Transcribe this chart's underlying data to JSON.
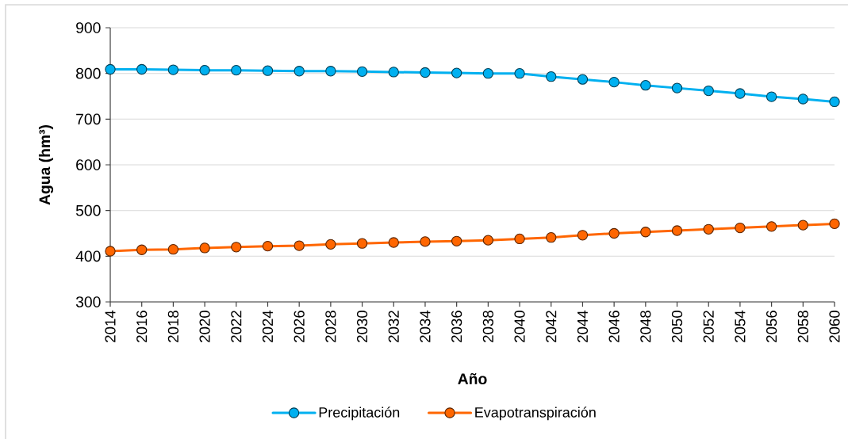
{
  "chart_data": {
    "type": "line",
    "xlabel": "Año",
    "ylabel": "Agua (hm³)",
    "categories": [
      "2014",
      "2016",
      "2018",
      "2020",
      "2022",
      "2024",
      "2026",
      "2028",
      "2030",
      "2032",
      "2034",
      "2036",
      "2038",
      "2040",
      "2042",
      "2044",
      "2046",
      "2048",
      "2050",
      "2052",
      "2054",
      "2056",
      "2058",
      "2060"
    ],
    "series": [
      {
        "name": "Precipitación",
        "color": "#00b0f0",
        "values": [
          809,
          809,
          808,
          807,
          807,
          806,
          805,
          805,
          804,
          803,
          802,
          801,
          800,
          800,
          793,
          787,
          781,
          774,
          768,
          762,
          756,
          749,
          744,
          738
        ]
      },
      {
        "name": "Evapotranspiración",
        "color": "#ff6600",
        "values": [
          411,
          414,
          415,
          418,
          420,
          422,
          423,
          426,
          428,
          430,
          432,
          433,
          435,
          438,
          441,
          446,
          450,
          453,
          456,
          459,
          462,
          465,
          468,
          471
        ]
      }
    ],
    "ylim": [
      300,
      900
    ],
    "yticks": [
      300,
      400,
      500,
      600,
      700,
      800,
      900
    ],
    "grid": "y",
    "legend": "bottom",
    "marker": "circle",
    "line_style": "solid"
  }
}
